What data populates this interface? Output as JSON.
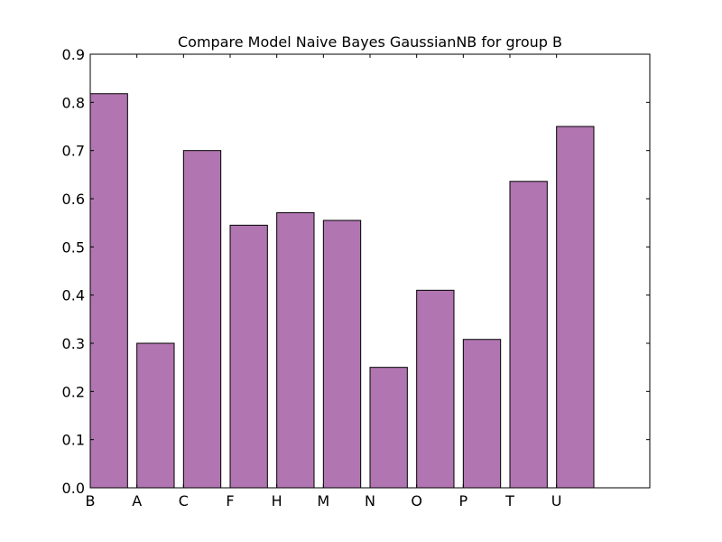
{
  "chart_data": {
    "type": "bar",
    "title": "Compare Model Naive Bayes GaussianNB for group B",
    "xlabel": "",
    "ylabel": "",
    "categories": [
      "B",
      "A",
      "C",
      "F",
      "H",
      "M",
      "N",
      "O",
      "P",
      "T",
      "U"
    ],
    "values": [
      0.818,
      0.3,
      0.7,
      0.545,
      0.571,
      0.555,
      0.25,
      0.41,
      0.308,
      0.636,
      0.75
    ],
    "ylim": [
      0,
      0.9
    ],
    "xlim": [
      0,
      12
    ],
    "yticks": [
      0.0,
      0.1,
      0.2,
      0.3,
      0.4,
      0.5,
      0.6,
      0.7,
      0.8,
      0.9
    ],
    "ytick_labels": [
      "0.0",
      "0.1",
      "0.2",
      "0.3",
      "0.4",
      "0.5",
      "0.6",
      "0.7",
      "0.8",
      "0.9"
    ],
    "bar_color": "#b175b1",
    "edge_color": "#000000",
    "grid": false,
    "legend": "none"
  }
}
